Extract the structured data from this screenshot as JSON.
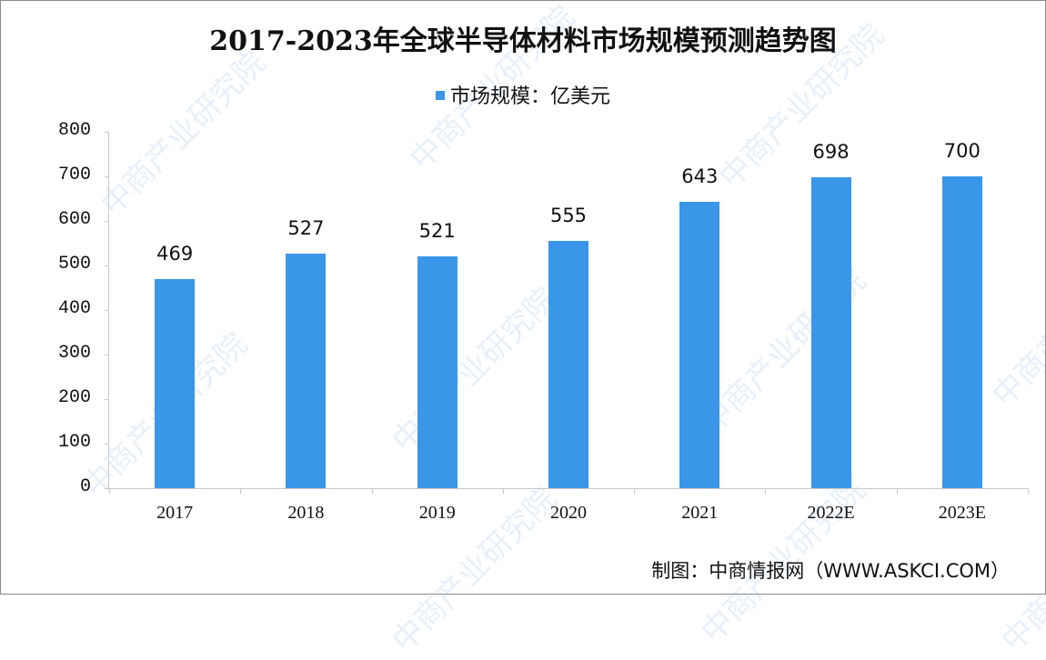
{
  "title": "2017-2023年全球半导体材料市场规模预测趋势图",
  "legend": {
    "label": "市场规模：亿美元",
    "color": "#3a96e8"
  },
  "source": "制图：中商情报网（WWW.ASKCI.COM）",
  "watermark": "中商产业研究院",
  "colors": {
    "bar": "#3a96e8",
    "axis": "#c8c8c8",
    "text": "#111111"
  },
  "chart_data": {
    "type": "bar",
    "title": "2017-2023年全球半导体材料市场规模预测趋势图",
    "xlabel": "",
    "ylabel": "",
    "categories": [
      "2017",
      "2018",
      "2019",
      "2020",
      "2021",
      "2022E",
      "2023E"
    ],
    "series": [
      {
        "name": "市场规模：亿美元",
        "values": [
          469,
          527,
          521,
          555,
          643,
          698,
          700
        ]
      }
    ],
    "values": [
      469,
      527,
      521,
      555,
      643,
      698,
      700
    ],
    "ylim": [
      0,
      800
    ],
    "yticks": [
      0,
      100,
      200,
      300,
      400,
      500,
      600,
      700,
      800
    ],
    "grid": false,
    "legend_position": "top",
    "data_labels": true
  }
}
